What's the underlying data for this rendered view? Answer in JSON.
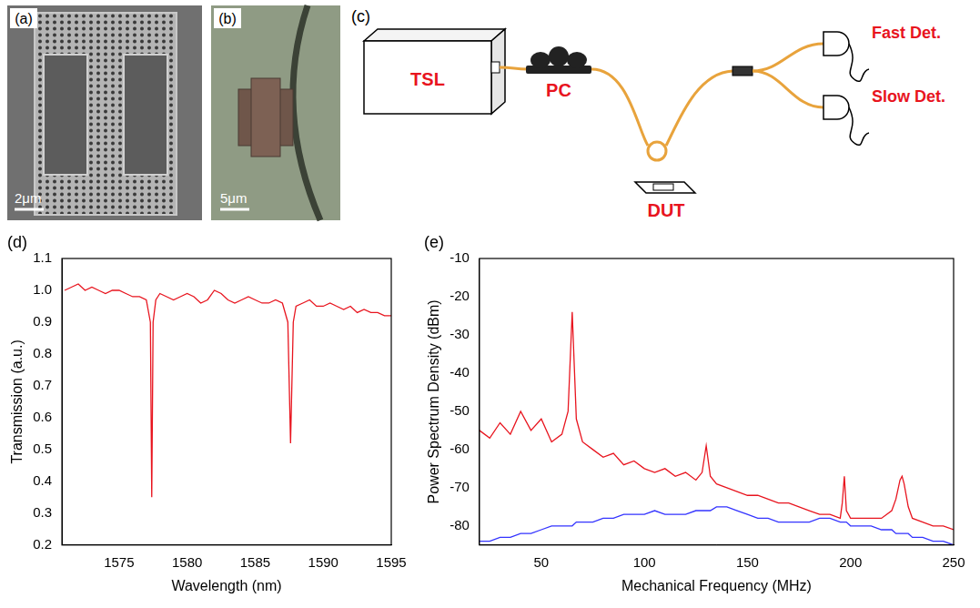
{
  "panels": {
    "a": {
      "label": "(a)",
      "scale_bar": "2μm"
    },
    "b": {
      "label": "(b)",
      "scale_bar": "5μm"
    },
    "c": {
      "label": "(c)",
      "nodes": [
        {
          "label": "TSL"
        },
        {
          "label": "PC"
        },
        {
          "label": "DUT"
        },
        {
          "label": "Fast Det."
        },
        {
          "label": "Slow Det."
        }
      ]
    }
  },
  "chart_data": [
    {
      "panel": "(d)",
      "type": "line",
      "x_label": "Wavelength (nm)",
      "y_label": "Transmission (a.u.)",
      "x": [
        1571,
        1571.5,
        1572,
        1572.5,
        1573,
        1573.5,
        1574,
        1574.5,
        1575,
        1575.5,
        1576,
        1576.5,
        1577,
        1577.3,
        1577.4,
        1577.5,
        1577.7,
        1578,
        1578.5,
        1579,
        1579.5,
        1580,
        1580.5,
        1581,
        1581.5,
        1582,
        1582.5,
        1583,
        1583.5,
        1584,
        1584.5,
        1585,
        1585.5,
        1586,
        1586.5,
        1587,
        1587.4,
        1587.6,
        1587.8,
        1588,
        1588.5,
        1589,
        1589.5,
        1590,
        1590.5,
        1591,
        1591.5,
        1592,
        1592.5,
        1593,
        1593.5,
        1594,
        1594.5,
        1595
      ],
      "series": [
        {
          "color": "#e8141e",
          "values": [
            1.0,
            1.01,
            1.02,
            1.0,
            1.01,
            1.0,
            0.99,
            1.0,
            1.0,
            0.99,
            0.98,
            0.98,
            0.97,
            0.9,
            0.35,
            0.9,
            0.97,
            0.99,
            0.98,
            0.97,
            0.98,
            0.99,
            0.98,
            0.96,
            0.97,
            1.0,
            0.99,
            0.97,
            0.96,
            0.97,
            0.98,
            0.97,
            0.96,
            0.96,
            0.97,
            0.96,
            0.9,
            0.52,
            0.9,
            0.95,
            0.96,
            0.97,
            0.95,
            0.95,
            0.96,
            0.95,
            0.94,
            0.95,
            0.93,
            0.94,
            0.93,
            0.93,
            0.92,
            0.92
          ]
        }
      ],
      "xlim": [
        1570.8,
        1595
      ],
      "xticks": [
        1575,
        1580,
        1585,
        1590,
        1595
      ],
      "ylim": [
        0.2,
        1.1
      ],
      "yticks": [
        0.2,
        0.3,
        0.4,
        0.5,
        0.6,
        0.7,
        0.8,
        0.9,
        {
          "value": 1,
          "label": "1.0"
        },
        1.1
      ],
      "grid": false
    },
    {
      "panel": "(e)",
      "type": "line",
      "x_label": "Mechanical Frequency (MHz)",
      "y_label": "Power Spectrum Density (dBm)",
      "x": [
        20,
        25,
        30,
        35,
        40,
        45,
        50,
        55,
        60,
        63,
        65,
        67,
        70,
        75,
        80,
        85,
        90,
        95,
        100,
        105,
        110,
        115,
        120,
        125,
        128,
        130,
        132,
        135,
        140,
        145,
        150,
        155,
        160,
        165,
        170,
        175,
        180,
        185,
        190,
        195,
        196,
        197,
        198,
        200,
        205,
        210,
        215,
        220,
        222,
        224,
        225,
        226,
        228,
        230,
        235,
        240,
        245,
        250
      ],
      "series": [
        {
          "color": "#e8141e",
          "values": [
            -55,
            -57,
            -53,
            -56,
            -50,
            -55,
            -52,
            -58,
            -56,
            -50,
            -24,
            -52,
            -58,
            -60,
            -62,
            -61,
            -64,
            -63,
            -65,
            -66,
            -65,
            -67,
            -66,
            -68,
            -66,
            -59,
            -67,
            -69,
            -70,
            -71,
            -72,
            -72,
            -73,
            -74,
            -74,
            -75,
            -76,
            -77,
            -77,
            -78,
            -74,
            -67,
            -76,
            -78,
            -78,
            -78,
            -78,
            -76,
            -73,
            -68,
            -67,
            -69,
            -75,
            -78,
            -79,
            -80,
            -80,
            -81
          ]
        },
        {
          "color": "#3333ff",
          "values": [
            -84,
            -84,
            -83,
            -83,
            -82,
            -82,
            -81,
            -80,
            -80,
            -80,
            -80,
            -79,
            -79,
            -79,
            -78,
            -78,
            -77,
            -77,
            -77,
            -76,
            -77,
            -77,
            -77,
            -76,
            -76,
            -76,
            -76,
            -75,
            -75,
            -76,
            -77,
            -78,
            -78,
            -79,
            -79,
            -79,
            -79,
            -78,
            -78,
            -79,
            -79,
            -79,
            -79,
            -80,
            -80,
            -80,
            -81,
            -81,
            -82,
            -82,
            -82,
            -82,
            -82,
            -83,
            -83,
            -84,
            -84,
            -85
          ]
        }
      ],
      "xlim": [
        20,
        250
      ],
      "xticks": [
        50,
        100,
        150,
        200,
        250
      ],
      "ylim": [
        -85,
        -10
      ],
      "yticks": [
        -80,
        -70,
        -60,
        -50,
        -40,
        -30,
        -20,
        -10
      ],
      "grid": false
    }
  ]
}
